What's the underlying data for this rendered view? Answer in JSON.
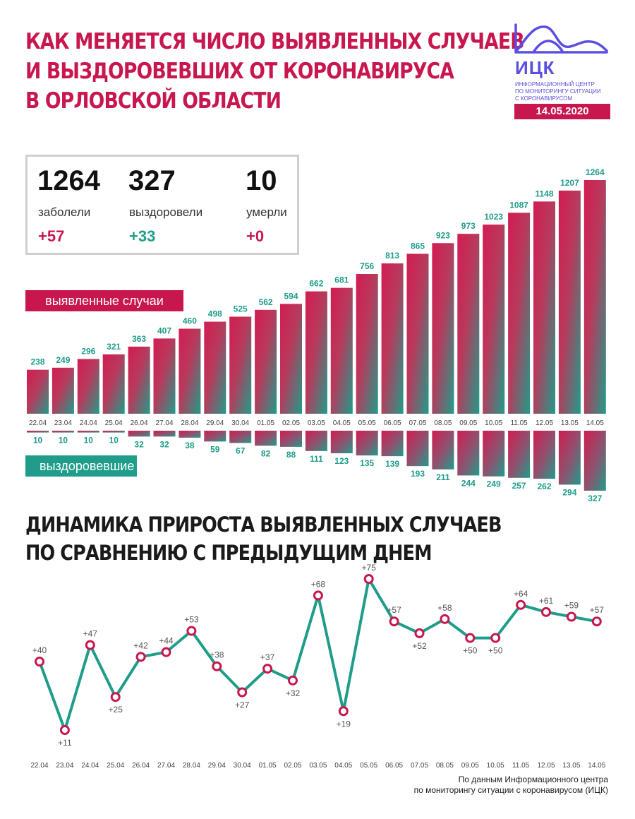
{
  "title": {
    "line1": "КАК МЕНЯЕТСЯ ЧИСЛО ВЫЯВЛЕННЫХ СЛУЧАЕВ",
    "line2": "И ВЫЗДОРОВЕВШИХ ОТ КОРОНАВИРУСА",
    "line3": "В ОРЛОВСКОЙ ОБЛАСТИ"
  },
  "logo": {
    "abbr": "ИЦК",
    "line1": "ИНФОРМАЦИОННЫЙ ЦЕНТР",
    "line2": "ПО МОНИТОРИНГУ СИТУАЦИИ",
    "line3": "С КОРОНАВИРУСОМ",
    "color": "#5b4ee0"
  },
  "date": "14.05.2020",
  "stats": {
    "cases": {
      "value": "1264",
      "label": "заболели",
      "delta": "+57"
    },
    "recovered": {
      "value": "327",
      "label": "выздоровели",
      "delta": "+33"
    },
    "deaths": {
      "value": "10",
      "label": "умерли",
      "delta": "+0"
    }
  },
  "legend": {
    "cases": "выявленные случаи",
    "recovered": "выздоровевшие"
  },
  "subtitle": {
    "line1": "ДИНАМИКА ПРИРОСТА ВЫЯВЛЕННЫХ СЛУЧАЕВ",
    "line2": "ПО СРАВНЕНИЮ С ПРЕДЫДУЩИМ ДНЕМ"
  },
  "source": {
    "line1": "По данным Информационного центра",
    "line2": "по мониторингу ситуации с коронавирусом (ИЦК)"
  },
  "colors": {
    "accent": "#c8174f",
    "teal": "#1f9c8a"
  },
  "chart_data": [
    {
      "type": "bar",
      "categories": [
        "22.04",
        "23.04",
        "24.04",
        "25.04",
        "26.04",
        "27.04",
        "28.04",
        "29.04",
        "30.04",
        "01.05",
        "02.05",
        "03.05",
        "04.05",
        "05.05",
        "06.05",
        "07.05",
        "08.05",
        "09.05",
        "10.05",
        "11.05",
        "12.05",
        "13.05",
        "14.05"
      ],
      "series": [
        {
          "name": "выявленные случаи",
          "values": [
            238,
            249,
            296,
            321,
            363,
            407,
            460,
            498,
            525,
            562,
            594,
            662,
            681,
            756,
            813,
            865,
            923,
            973,
            1023,
            1087,
            1148,
            1207,
            1264
          ]
        },
        {
          "name": "выздоровевшие",
          "values": [
            10,
            10,
            10,
            10,
            32,
            32,
            38,
            59,
            67,
            82,
            88,
            111,
            123,
            135,
            139,
            193,
            211,
            244,
            249,
            257,
            262,
            294,
            327
          ]
        }
      ]
    },
    {
      "type": "line",
      "title": "ДИНАМИКА ПРИРОСТА ВЫЯВЛЕННЫХ СЛУЧАЕВ ПО СРАВНЕНИЮ С ПРЕДЫДУЩИМ ДНЕМ",
      "categories": [
        "22.04",
        "23.04",
        "24.04",
        "25.04",
        "26.04",
        "27.04",
        "28.04",
        "29.04",
        "30.04",
        "01.05",
        "02.05",
        "03.05",
        "04.05",
        "05.05",
        "06.05",
        "07.05",
        "08.05",
        "09.05",
        "10.05",
        "11.05",
        "12.05",
        "13.05",
        "14.05"
      ],
      "values": [
        40,
        11,
        47,
        25,
        42,
        44,
        53,
        38,
        27,
        37,
        32,
        68,
        19,
        75,
        57,
        52,
        58,
        50,
        50,
        64,
        61,
        59,
        57
      ],
      "labels": [
        "+40",
        "+11",
        "+47",
        "+25",
        "+42",
        "+44",
        "+53",
        "+38",
        "+27",
        "+37",
        "+32",
        "+68",
        "+19",
        "+75",
        "+57",
        "+52",
        "+58",
        "+50",
        "+50",
        "+64",
        "+61",
        "+59",
        "+57"
      ]
    }
  ]
}
